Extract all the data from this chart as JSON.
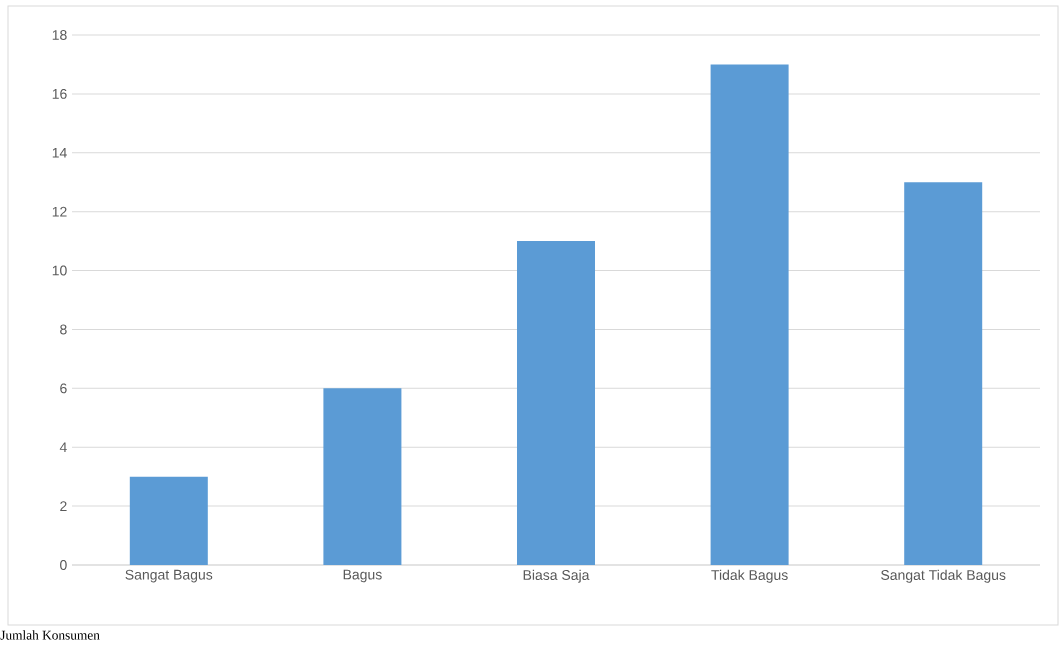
{
  "chart_data": {
    "type": "bar",
    "categories": [
      "Sangat Bagus",
      "Bagus",
      "Biasa Saja",
      "Tidak Bagus",
      "Sangat Tidak Bagus"
    ],
    "values": [
      3,
      6,
      11,
      17,
      13
    ],
    "color": "#5b9bd5",
    "ylim": [
      0,
      18
    ],
    "yticks": [
      0,
      2,
      4,
      6,
      8,
      10,
      12,
      14,
      16,
      18
    ],
    "grid": "y",
    "annotations": [
      "Jumlah Konsumen"
    ]
  }
}
